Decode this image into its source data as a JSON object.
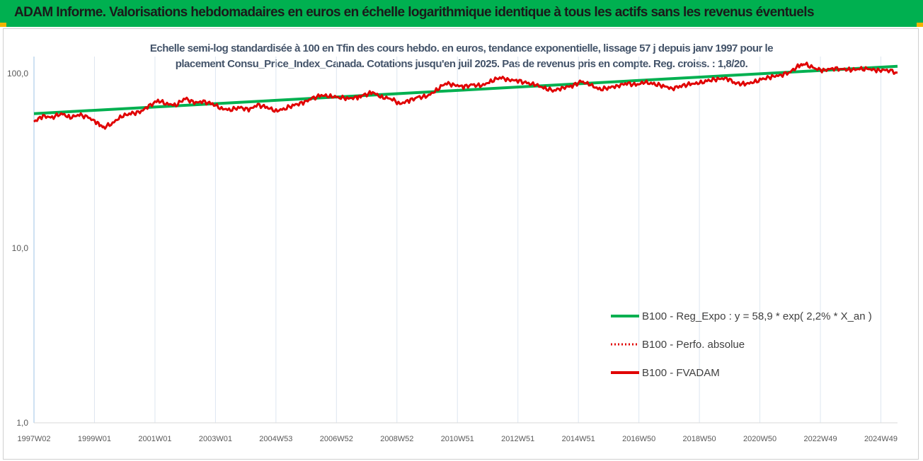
{
  "header": {
    "title": "ADAM Informe. Valorisations hebdomadaires en euros en échelle logarithmique identique à tous les actifs sans les revenus éventuels",
    "background": "#00b050",
    "corner_color": "#f2b400"
  },
  "chart_data": {
    "type": "line",
    "title_line1": "Echelle semi-log standardisée à 100 en Tfin des cours hebdo. en euros, tendance exponentielle, lissage 57 j depuis janv 1997 pour le",
    "title_line2": "placement Consu_Price_Index_Canada. Cotations jusqu'en juil 2025. Pas de revenus pris en compte. Reg. croiss. : 1,8/20.",
    "y_scale": "log",
    "ylim": [
      1,
      130
    ],
    "y_tick_labels": [
      "1,0",
      "10,0",
      "100,0"
    ],
    "y_tick_values": [
      1,
      10,
      100
    ],
    "x_tick_labels": [
      "1997W02",
      "1999W01",
      "2001W01",
      "2003W01",
      "2004W53",
      "2006W52",
      "2008W52",
      "2010W51",
      "2012W51",
      "2014W51",
      "2016W50",
      "2018W50",
      "2020W50",
      "2022W49",
      "2024W49"
    ],
    "x_tick_years": [
      1997.0,
      1999.0,
      2001.0,
      2003.0,
      2005.0,
      2007.0,
      2009.0,
      2011.0,
      2013.0,
      2015.0,
      2017.0,
      2019.0,
      2021.0,
      2023.0,
      2025.0
    ],
    "x_range_years": [
      1997.0,
      2025.55
    ],
    "grid": "vertical",
    "legend_position": "bottom-right",
    "series": [
      {
        "name": "B100 - Reg_Expo : y = 58,9 * exp( 2,2% *  X_an )",
        "color": "#00b050",
        "style": "solid",
        "points": [
          [
            1997.0,
            58.9
          ],
          [
            2025.55,
            110.0
          ]
        ]
      },
      {
        "name": "B100 - Perfo. absolue",
        "color": "#e00000",
        "style": "dotted",
        "points": []
      },
      {
        "name": "B100 - FVADAM",
        "color": "#e00000",
        "style": "solid",
        "points": [
          [
            1997.0,
            53
          ],
          [
            1997.3,
            57
          ],
          [
            1997.6,
            56
          ],
          [
            1997.9,
            59
          ],
          [
            1998.2,
            56
          ],
          [
            1998.5,
            58
          ],
          [
            1998.8,
            56
          ],
          [
            1999.1,
            52
          ],
          [
            1999.3,
            49
          ],
          [
            1999.6,
            52
          ],
          [
            1999.9,
            57
          ],
          [
            2000.2,
            59
          ],
          [
            2000.5,
            60
          ],
          [
            2000.8,
            65
          ],
          [
            2001.1,
            70
          ],
          [
            2001.4,
            67
          ],
          [
            2001.7,
            66
          ],
          [
            2002.0,
            72
          ],
          [
            2002.3,
            68
          ],
          [
            2002.6,
            69
          ],
          [
            2002.9,
            67
          ],
          [
            2003.2,
            63
          ],
          [
            2003.5,
            62
          ],
          [
            2003.8,
            64
          ],
          [
            2004.1,
            62
          ],
          [
            2004.4,
            66
          ],
          [
            2004.7,
            64
          ],
          [
            2005.0,
            61
          ],
          [
            2005.3,
            63
          ],
          [
            2005.6,
            66
          ],
          [
            2005.9,
            68
          ],
          [
            2006.2,
            72
          ],
          [
            2006.5,
            75
          ],
          [
            2006.8,
            74
          ],
          [
            2007.1,
            73
          ],
          [
            2007.4,
            72
          ],
          [
            2007.7,
            73
          ],
          [
            2007.9,
            75
          ],
          [
            2008.2,
            78
          ],
          [
            2008.5,
            73
          ],
          [
            2008.8,
            72
          ],
          [
            2009.1,
            67
          ],
          [
            2009.4,
            70
          ],
          [
            2009.7,
            73
          ],
          [
            2010.0,
            74
          ],
          [
            2010.3,
            80
          ],
          [
            2010.6,
            88
          ],
          [
            2010.9,
            86
          ],
          [
            2011.2,
            84
          ],
          [
            2011.5,
            86
          ],
          [
            2011.8,
            85
          ],
          [
            2012.1,
            90
          ],
          [
            2012.4,
            95
          ],
          [
            2012.7,
            92
          ],
          [
            2013.0,
            91
          ],
          [
            2013.3,
            88
          ],
          [
            2013.6,
            86
          ],
          [
            2013.9,
            82
          ],
          [
            2014.2,
            80
          ],
          [
            2014.5,
            83
          ],
          [
            2014.8,
            85
          ],
          [
            2015.1,
            90
          ],
          [
            2015.4,
            86
          ],
          [
            2015.7,
            81
          ],
          [
            2016.0,
            83
          ],
          [
            2016.3,
            85
          ],
          [
            2016.6,
            88
          ],
          [
            2016.9,
            86
          ],
          [
            2017.2,
            89
          ],
          [
            2017.5,
            87
          ],
          [
            2017.8,
            85
          ],
          [
            2018.1,
            82
          ],
          [
            2018.4,
            85
          ],
          [
            2018.7,
            87
          ],
          [
            2019.0,
            88
          ],
          [
            2019.3,
            91
          ],
          [
            2019.6,
            93
          ],
          [
            2019.9,
            94
          ],
          [
            2020.2,
            88
          ],
          [
            2020.5,
            87
          ],
          [
            2020.8,
            89
          ],
          [
            2021.1,
            93
          ],
          [
            2021.4,
            96
          ],
          [
            2021.7,
            98
          ],
          [
            2022.0,
            102
          ],
          [
            2022.3,
            111
          ],
          [
            2022.5,
            113
          ],
          [
            2022.8,
            107
          ],
          [
            2023.1,
            104
          ],
          [
            2023.4,
            107
          ],
          [
            2023.7,
            106
          ],
          [
            2024.0,
            105
          ],
          [
            2024.3,
            106
          ],
          [
            2024.6,
            106
          ],
          [
            2024.9,
            104
          ],
          [
            2025.2,
            105
          ],
          [
            2025.55,
            101
          ]
        ]
      }
    ]
  }
}
